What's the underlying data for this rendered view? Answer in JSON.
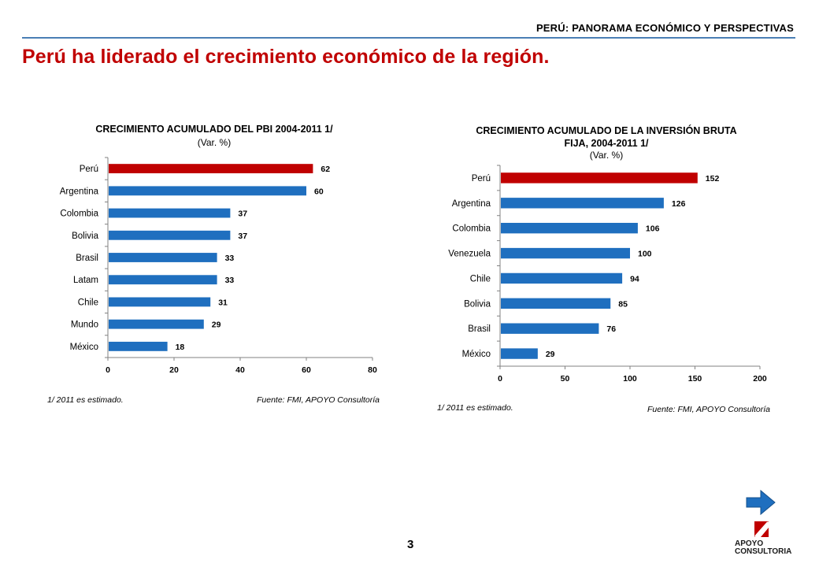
{
  "header": {
    "title": "PERÚ: PANORAMA ECONÓMICO Y PERSPECTIVAS"
  },
  "main_title": "Perú ha liderado el crecimiento económico de la región.",
  "page_number": "3",
  "logo": {
    "line1": "APOYO",
    "line2": "CONSULTORIA"
  },
  "colors": {
    "highlight": "#c00000",
    "bar": "#1f6fbf",
    "title": "#c00000",
    "rule": "#4a7fb5"
  },
  "icons": {
    "next": "arrow-right-icon",
    "logo": "apoyo-logo-icon"
  },
  "chart_data": [
    {
      "type": "bar",
      "orientation": "horizontal",
      "title": "CRECIMIENTO ACUMULADO  DEL  PBI 2004-2011  1/",
      "subtitle": "(Var. %)",
      "categories": [
        "Perú",
        "Argentina",
        "Colombia",
        "Bolivia",
        "Brasil",
        "Latam",
        "Chile",
        "Mundo",
        "México"
      ],
      "values": [
        62,
        60,
        37,
        37,
        33,
        33,
        31,
        29,
        18
      ],
      "value_labels": [
        "62",
        "60",
        "37",
        "37",
        "33",
        "33",
        "31",
        "29",
        "18"
      ],
      "highlight_index": 0,
      "xlim": [
        0,
        80
      ],
      "xticks": [
        "0",
        "20",
        "40",
        "60",
        "80"
      ],
      "note": "1/ 2011 es estimado.",
      "source": "Fuente: FMI, APOYO Consultoría"
    },
    {
      "type": "bar",
      "orientation": "horizontal",
      "title": "CRECIMIENTO ACUMULADO  DE LA INVERSIÓN BRUTA",
      "title_line2": "FIJA, 2004-2011  1/",
      "subtitle": "(Var. %)",
      "categories": [
        "Perú",
        "Argentina",
        "Colombia",
        "Venezuela",
        "Chile",
        "Bolivia",
        "Brasil",
        "México"
      ],
      "values": [
        152,
        126,
        106,
        100,
        94,
        85,
        76,
        29
      ],
      "value_labels": [
        "152",
        "126",
        "106",
        "100",
        "94",
        "85",
        "76",
        "29"
      ],
      "highlight_index": 0,
      "xlim": [
        0,
        200
      ],
      "xticks": [
        "0",
        "50",
        "100",
        "150",
        "200"
      ],
      "note": "1/ 2011 es estimado.",
      "source": "Fuente: FMI, APOYO Consultoría"
    }
  ]
}
